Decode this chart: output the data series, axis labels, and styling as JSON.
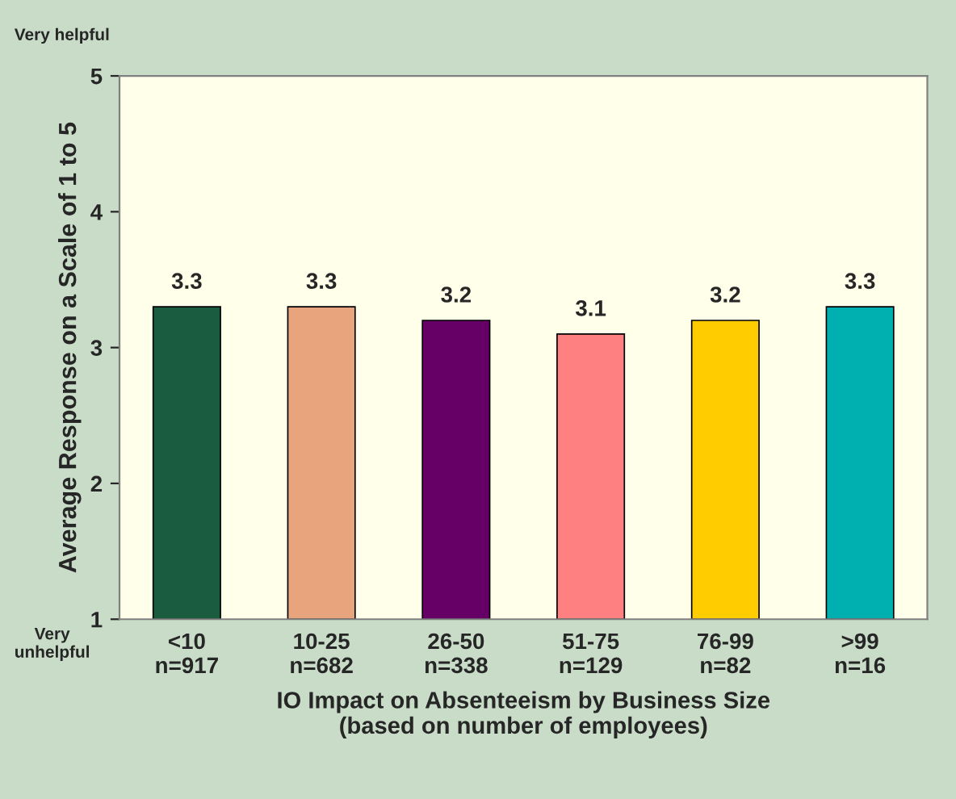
{
  "chart_data": {
    "type": "bar",
    "categories": [
      "<10\nn=917",
      "10-25\nn=682",
      "26-50\nn=338",
      "51-75\nn=129",
      "76-99\nn=82",
      ">99\nn=16"
    ],
    "values": [
      3.3,
      3.3,
      3.2,
      3.1,
      3.2,
      3.3
    ],
    "colors": [
      "#1a5c40",
      "#e8a47c",
      "#660066",
      "#ff8080",
      "#ffcc00",
      "#00b0b0"
    ],
    "xlabel": "IO Impact on Absenteeism by Business Size\n(based on number of employees)",
    "ylabel": "Average Response on a Scale of 1 to 5",
    "ylim": [
      1,
      5
    ],
    "yticks": [
      1,
      2,
      3,
      4,
      5
    ],
    "data_labels": true,
    "grid": false,
    "legend": false,
    "annotations": [
      "Very helpful",
      "Very\nunhelpful"
    ]
  }
}
